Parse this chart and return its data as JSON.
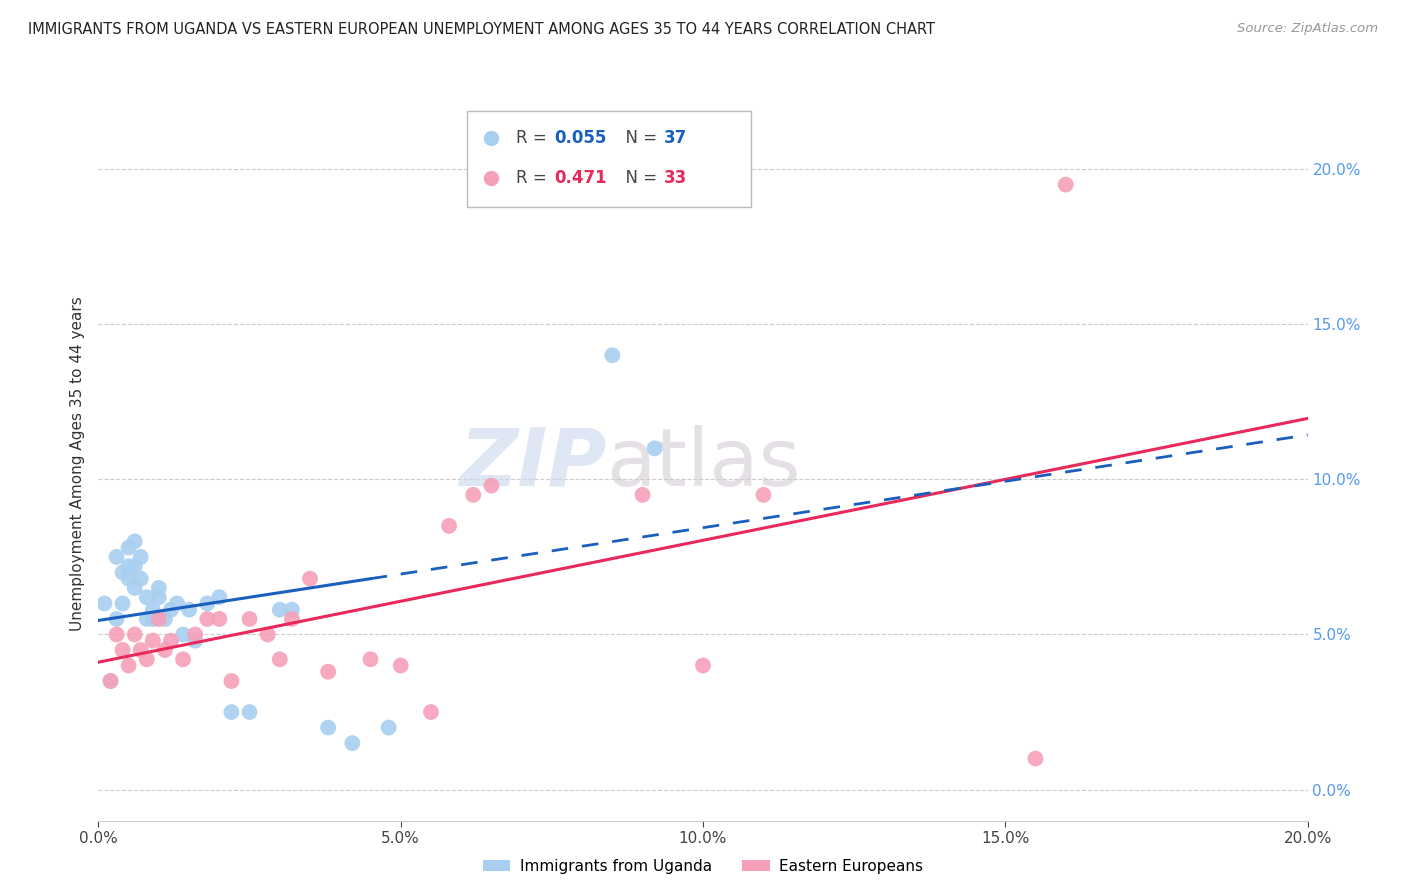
{
  "title": "IMMIGRANTS FROM UGANDA VS EASTERN EUROPEAN UNEMPLOYMENT AMONG AGES 35 TO 44 YEARS CORRELATION CHART",
  "source": "Source: ZipAtlas.com",
  "ylabel": "Unemployment Among Ages 35 to 44 years",
  "x_min": 0.0,
  "x_max": 0.2,
  "y_min": -0.01,
  "y_max": 0.22,
  "x_ticks": [
    0.0,
    0.05,
    0.1,
    0.15,
    0.2
  ],
  "x_tick_labels": [
    "0.0%",
    "5.0%",
    "10.0%",
    "15.0%",
    "20.0%"
  ],
  "y_ticks": [
    0.0,
    0.05,
    0.1,
    0.15,
    0.2
  ],
  "y_tick_labels_right": [
    "0.0%",
    "5.0%",
    "10.0%",
    "15.0%",
    "20.0%"
  ],
  "color_blue": "#a8cff0",
  "color_pink": "#f5a0b8",
  "color_line_blue": "#1a5fbe",
  "color_line_pink": "#e8295a",
  "watermark_zip": "ZIP",
  "watermark_atlas": "atlas",
  "uganda_x": [
    0.001,
    0.002,
    0.003,
    0.003,
    0.004,
    0.004,
    0.005,
    0.005,
    0.005,
    0.006,
    0.006,
    0.006,
    0.007,
    0.007,
    0.008,
    0.008,
    0.009,
    0.009,
    0.01,
    0.01,
    0.011,
    0.012,
    0.013,
    0.014,
    0.015,
    0.016,
    0.018,
    0.02,
    0.022,
    0.025,
    0.03,
    0.032,
    0.038,
    0.042,
    0.048,
    0.085,
    0.092
  ],
  "uganda_y": [
    0.06,
    0.035,
    0.075,
    0.055,
    0.07,
    0.06,
    0.068,
    0.072,
    0.078,
    0.065,
    0.072,
    0.08,
    0.068,
    0.075,
    0.055,
    0.062,
    0.055,
    0.058,
    0.062,
    0.065,
    0.055,
    0.058,
    0.06,
    0.05,
    0.058,
    0.048,
    0.06,
    0.062,
    0.025,
    0.025,
    0.058,
    0.058,
    0.02,
    0.015,
    0.02,
    0.14,
    0.11
  ],
  "eastern_x": [
    0.002,
    0.003,
    0.004,
    0.005,
    0.006,
    0.007,
    0.008,
    0.009,
    0.01,
    0.011,
    0.012,
    0.014,
    0.016,
    0.018,
    0.02,
    0.022,
    0.025,
    0.028,
    0.03,
    0.032,
    0.035,
    0.038,
    0.045,
    0.05,
    0.055,
    0.058,
    0.062,
    0.065,
    0.09,
    0.1,
    0.11,
    0.155,
    0.16
  ],
  "eastern_y": [
    0.035,
    0.05,
    0.045,
    0.04,
    0.05,
    0.045,
    0.042,
    0.048,
    0.055,
    0.045,
    0.048,
    0.042,
    0.05,
    0.055,
    0.055,
    0.035,
    0.055,
    0.05,
    0.042,
    0.055,
    0.068,
    0.038,
    0.042,
    0.04,
    0.025,
    0.085,
    0.095,
    0.098,
    0.095,
    0.04,
    0.095,
    0.01,
    0.195
  ],
  "ug_line_solid_end": 0.045,
  "ug_line_start_y": 0.058,
  "ug_line_end_y": 0.068,
  "ee_line_start_y": 0.025,
  "ee_line_end_y": 0.115
}
